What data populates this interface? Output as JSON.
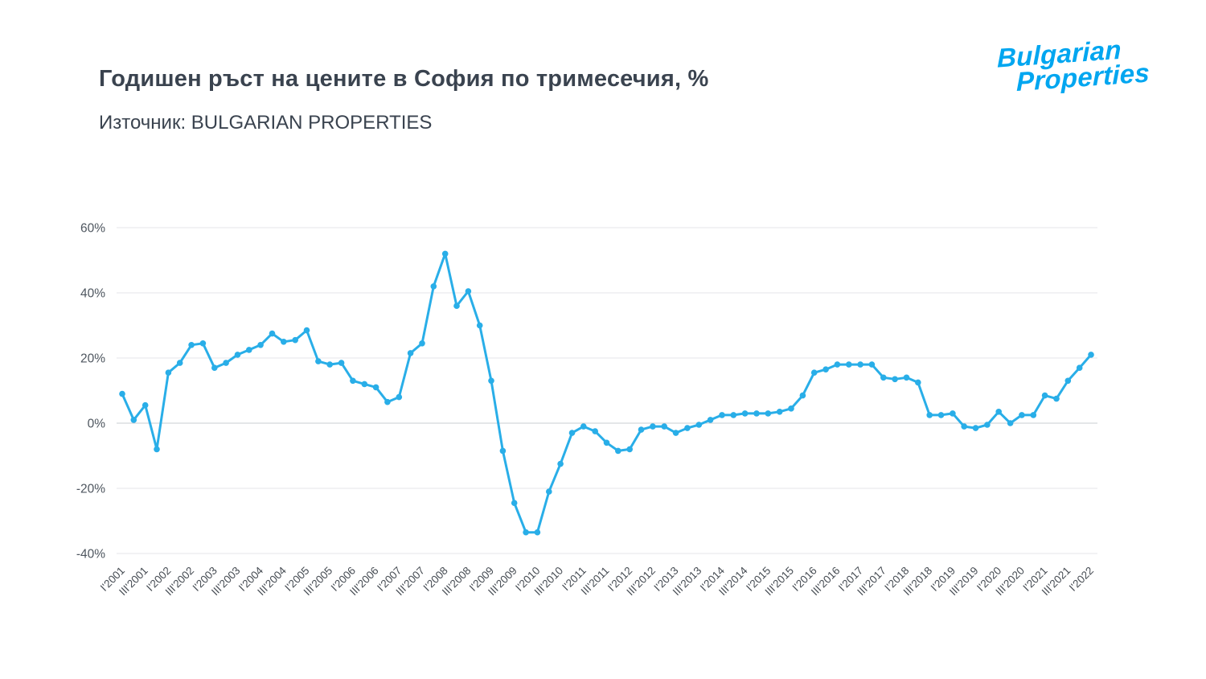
{
  "header": {
    "title": "Годишен ръст на цените в София по тримесечия, %",
    "source": "Източник: BULGARIAN PROPERTIES"
  },
  "logo": {
    "line1": "Bulgarian",
    "line2": "Properties",
    "color": "#00A6F0"
  },
  "colors": {
    "line": "#29AEE8",
    "grid": "#e4e6e9",
    "zero_line": "#c9ccd1",
    "axis_text": "#4e565f",
    "title_text": "#3a434f"
  },
  "chart_data": {
    "type": "line",
    "title": "Годишен ръст на цените в София по тримесечия, %",
    "source": "BULGARIAN PROPERTIES",
    "series_name": "Годишен ръст на цените в София, %",
    "legend": "none",
    "grid": "horizontal",
    "marker": "circle",
    "line_color": "#29AEE8",
    "ylim": [
      -40,
      60
    ],
    "ytick_step": 20,
    "ytick_labels": [
      "60%",
      "40%",
      "20%",
      "0%",
      "-20%",
      "-40%"
    ],
    "x_tick_every": 2,
    "x": [
      "I'2001",
      "II'2001",
      "III'2001",
      "IV'2001",
      "I'2002",
      "II'2002",
      "III'2002",
      "IV'2002",
      "I'2003",
      "II'2003",
      "III'2003",
      "IV'2003",
      "I'2004",
      "II'2004",
      "III'2004",
      "IV'2004",
      "I'2005",
      "II'2005",
      "III'2005",
      "IV'2005",
      "I'2006",
      "II'2006",
      "III'2006",
      "IV'2006",
      "I'2007",
      "II'2007",
      "III'2007",
      "IV'2007",
      "I'2008",
      "II'2008",
      "III'2008",
      "IV'2008",
      "I'2009",
      "II'2009",
      "III'2009",
      "IV'2009",
      "I'2010",
      "II'2010",
      "III'2010",
      "IV'2010",
      "I'2011",
      "II'2011",
      "III'2011",
      "IV'2011",
      "I'2012",
      "II'2012",
      "III'2012",
      "IV'2012",
      "I'2013",
      "II'2013",
      "III'2013",
      "IV'2013",
      "I'2014",
      "II'2014",
      "III'2014",
      "IV'2014",
      "I'2015",
      "II'2015",
      "III'2015",
      "IV'2015",
      "I'2016",
      "II'2016",
      "III'2016",
      "IV'2016",
      "I'2017",
      "II'2017",
      "III'2017",
      "IV'2017",
      "I'2018",
      "II'2018",
      "III'2018",
      "IV'2018",
      "I'2019",
      "II'2019",
      "III'2019",
      "IV'2019",
      "I'2020",
      "II'2020",
      "III'2020",
      "IV'2020",
      "I'2021",
      "II'2021",
      "III'2021",
      "IV'2021",
      "I'2022"
    ],
    "values": [
      9,
      1,
      5.5,
      -8,
      15.5,
      18.5,
      24,
      24.5,
      17,
      18.5,
      21,
      22.5,
      24,
      27.5,
      25,
      25.5,
      28.5,
      19,
      18,
      18.5,
      13,
      12,
      11,
      6.5,
      8,
      21.5,
      24.5,
      42,
      52,
      36,
      40.5,
      30,
      13,
      -8.5,
      -24.5,
      -33.5,
      -33.5,
      -21,
      -12.5,
      -3,
      -1,
      -2.5,
      -6,
      -8.5,
      -8,
      -2,
      -1,
      -1,
      -3,
      -1.5,
      -0.5,
      1,
      2.5,
      2.5,
      3,
      3,
      3,
      3.5,
      4.5,
      8.5,
      15.5,
      16.5,
      18,
      18,
      18,
      18,
      14,
      13.5,
      14,
      12.5,
      2.5,
      2.5,
      3,
      -1,
      -1.5,
      -0.5,
      3.5,
      0,
      2.5,
      2.5,
      8.5,
      7.5,
      13,
      17,
      21
    ]
  }
}
